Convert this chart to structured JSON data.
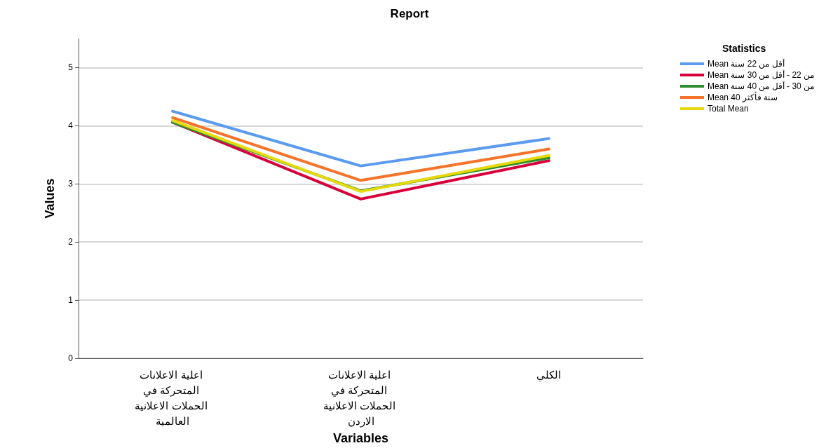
{
  "chart_data": {
    "type": "line",
    "title": "Report",
    "xlabel": "Variables",
    "ylabel": "Values",
    "legend_title": "Statistics",
    "categories": [
      "اعلية الاعلانات المتحركة في الحملات الاعلانية العالمية",
      "اعلية الاعلانات المتحركة في الحملات الاعلانية الاردن",
      "الكلي"
    ],
    "series": [
      {
        "name": "Mean أقل من 22 سنة",
        "color": "#5b9bef",
        "values": [
          4.25,
          3.31,
          3.78
        ]
      },
      {
        "name": "Mean من 22 - أقل من 30 سنة",
        "color": "#d7003a",
        "values": [
          4.06,
          2.74,
          3.4
        ]
      },
      {
        "name": "Mean من 30 - أقل من 40 سنة",
        "color": "#2e8b2e",
        "values": [
          4.06,
          2.88,
          3.45
        ]
      },
      {
        "name": "Mean 40 سنة فأكثر",
        "color": "#f5732a",
        "values": [
          4.14,
          3.06,
          3.6
        ]
      },
      {
        "name": "Total Mean",
        "color": "#e5d90c",
        "values": [
          4.09,
          2.87,
          3.49
        ]
      }
    ],
    "ylim": [
      0,
      5.5
    ],
    "yticks": [
      0,
      1,
      2,
      3,
      4,
      5
    ],
    "grid": "y",
    "legend": "top right",
    "marker": "none",
    "line_style": "solid"
  }
}
